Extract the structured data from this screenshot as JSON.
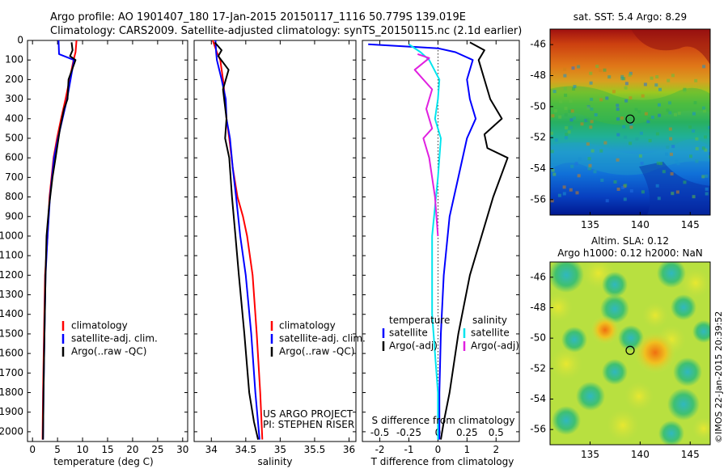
{
  "header": {
    "line1": "Argo profile: AO 1901407_180 17-Jan-2015 20150117_1116 50.779S 139.019E",
    "line2": "Climatology: CARS2009. Satellite-adjusted climatology: synTS_20150115.nc (2.1d earlier)"
  },
  "credits": {
    "project": "US ARGO PROJECT",
    "pi": "PI: STEPHEN RISER",
    "stamp": "©IMOS 22-Jan-2015 20:39:52"
  },
  "colors": {
    "climatology": "#ff0000",
    "satellite": "#0000ff",
    "argo": "#000000",
    "cyan": "#00e5ee",
    "magenta": "#e020e0"
  },
  "chart_data": [
    {
      "id": "temperature",
      "type": "line",
      "xlabel": "temperature (deg C)",
      "ylabel": "",
      "xlim": [
        -1,
        31
      ],
      "ylim": [
        2050,
        0
      ],
      "xticks": [
        0,
        5,
        10,
        15,
        20,
        25,
        30
      ],
      "yticks": [
        0,
        100,
        200,
        300,
        400,
        500,
        600,
        700,
        800,
        900,
        1000,
        1100,
        1200,
        1300,
        1400,
        1500,
        1600,
        1700,
        1800,
        1900,
        2000
      ],
      "legend": [
        "climatology",
        "satellite-adj. clim.",
        "Argo(..raw -QC)"
      ],
      "legend_position": "lower-center",
      "series": [
        {
          "name": "climatology",
          "color": "#ff0000",
          "x": [
            8.8,
            8.6,
            8.2,
            7.4,
            6.6,
            5.7,
            4.9,
            4.2,
            3.4,
            3.0,
            2.5,
            2.3,
            2.1,
            2.0
          ],
          "y": [
            0,
            60,
            100,
            200,
            300,
            400,
            500,
            600,
            800,
            1000,
            1200,
            1500,
            1800,
            2040
          ]
        },
        {
          "name": "satellite-adj. clim.",
          "color": "#0000ff",
          "x": [
            5.2,
            5.3,
            8.3,
            7.6,
            6.9,
            6.0,
            5.1,
            4.3,
            3.5,
            3.0,
            2.6,
            2.4,
            2.2,
            2.1
          ],
          "y": [
            0,
            70,
            100,
            200,
            300,
            400,
            500,
            600,
            800,
            1000,
            1200,
            1500,
            1800,
            2040
          ]
        },
        {
          "name": "Argo(..raw -QC)",
          "color": "#000000",
          "x": [
            7.8,
            8.0,
            7.5,
            8.6,
            7.2,
            7.0,
            6.3,
            5.5,
            4.6,
            4.0,
            3.3,
            2.8,
            2.6,
            2.4,
            2.2,
            2.1
          ],
          "y": [
            10,
            50,
            80,
            100,
            200,
            300,
            350,
            450,
            600,
            700,
            850,
            1000,
            1200,
            1500,
            1800,
            2040
          ]
        }
      ]
    },
    {
      "id": "salinity",
      "type": "line",
      "xlabel": "salinity",
      "ylabel": "",
      "xlim": [
        33.75,
        36.1
      ],
      "ylim": [
        2050,
        0
      ],
      "xticks": [
        34,
        34.5,
        35,
        35.5,
        36
      ],
      "legend": [
        "climatology",
        "satellite-adj. clim.",
        "Argo(..raw -QC)"
      ],
      "legend_position": "lower-right",
      "series": [
        {
          "name": "climatology",
          "color": "#ff0000",
          "x": [
            34.02,
            34.08,
            34.13,
            34.17,
            34.2,
            34.22,
            34.26,
            34.31,
            34.38,
            34.46,
            34.52,
            34.6,
            34.66,
            34.71,
            34.74
          ],
          "y": [
            0,
            60,
            100,
            200,
            300,
            400,
            500,
            650,
            800,
            900,
            1000,
            1200,
            1500,
            1800,
            2040
          ]
        },
        {
          "name": "satellite-adj. clim.",
          "color": "#0000ff",
          "x": [
            34.06,
            34.07,
            34.08,
            34.15,
            34.21,
            34.22,
            34.27,
            34.31,
            34.36,
            34.42,
            34.5,
            34.58,
            34.64,
            34.7
          ],
          "y": [
            0,
            60,
            100,
            200,
            300,
            400,
            500,
            650,
            800,
            1000,
            1200,
            1500,
            1800,
            2040
          ]
        },
        {
          "name": "Argo(..raw -QC)",
          "color": "#000000",
          "x": [
            34.05,
            34.15,
            34.1,
            34.25,
            34.17,
            34.22,
            34.2,
            34.26,
            34.3,
            34.35,
            34.4,
            34.48,
            34.55,
            34.62,
            34.68
          ],
          "y": [
            10,
            50,
            80,
            150,
            250,
            400,
            500,
            600,
            800,
            1000,
            1200,
            1500,
            1800,
            1950,
            2040
          ]
        }
      ]
    },
    {
      "id": "differences",
      "type": "line",
      "xlabel": "T difference from climatology",
      "x2label": "S difference from climatology",
      "ylabel": "",
      "xlim": [
        -2.6,
        2.8
      ],
      "ylim": [
        2050,
        0
      ],
      "xticks": [
        -2,
        -1,
        0,
        1,
        2
      ],
      "x2ticks": [
        -0.5,
        -0.25,
        0,
        0.25,
        0.5
      ],
      "legend_headers": [
        "temperature",
        "salinity"
      ],
      "legend": [
        "satellite",
        "Argo(-adj)",
        "satellite",
        "Argo(-adj)"
      ],
      "legend_position": "lower-center",
      "series": [
        {
          "name": "temperature satellite",
          "color": "#0000ff",
          "x": [
            -2.4,
            0.0,
            0.6,
            1.2,
            1.0,
            1.1,
            1.3,
            1.0,
            0.7,
            0.4,
            0.2,
            0.1,
            0.05,
            0.05
          ],
          "y": [
            20,
            40,
            60,
            100,
            200,
            300,
            400,
            500,
            700,
            900,
            1200,
            1500,
            1800,
            2040
          ]
        },
        {
          "name": "temperature Argo(-adj)",
          "color": "#000000",
          "x": [
            1.1,
            1.6,
            1.4,
            1.6,
            1.8,
            2.2,
            1.6,
            1.7,
            2.4,
            1.9,
            1.5,
            1.1,
            0.7,
            0.4,
            0.2,
            0.1
          ],
          "y": [
            10,
            50,
            100,
            200,
            300,
            400,
            480,
            550,
            600,
            800,
            1000,
            1200,
            1500,
            1800,
            1950,
            2040
          ]
        },
        {
          "name": "salinity satellite",
          "color": "#00e5ee",
          "x": [
            -1.0,
            -0.6,
            -0.3,
            0.05,
            0.0,
            -0.1,
            0.1,
            0.0,
            -0.2,
            -0.2,
            0.0,
            0.0
          ],
          "y": [
            20,
            60,
            100,
            200,
            300,
            400,
            500,
            700,
            1000,
            1400,
            1800,
            2040
          ]
        },
        {
          "name": "salinity Argo(-adj)",
          "color": "#e020e0",
          "x": [
            -0.7,
            -0.3,
            -0.8,
            -0.2,
            -0.4,
            -0.2,
            -0.5,
            -0.3,
            -0.1,
            0.0
          ],
          "y": [
            70,
            90,
            150,
            250,
            350,
            450,
            500,
            600,
            800,
            1000
          ]
        }
      ]
    },
    {
      "id": "sst-map",
      "type": "heatmap",
      "title": "sat. SST: 5.4 Argo: 8.29",
      "xlim": [
        131,
        147
      ],
      "ylim": [
        -57,
        -45
      ],
      "xticks": [
        135,
        140,
        145
      ],
      "yticks": [
        -46,
        -48,
        -50,
        -52,
        -54,
        -56
      ],
      "marker": {
        "lon": 139.0,
        "lat": -50.8
      }
    },
    {
      "id": "sla-map",
      "type": "heatmap",
      "title": "Altim. SLA: 0.12",
      "subtitle": "Argo h1000: 0.12 h2000: NaN",
      "xlim": [
        131,
        147
      ],
      "ylim": [
        -57,
        -45
      ],
      "xticks": [
        135,
        140,
        145
      ],
      "yticks": [
        -46,
        -48,
        -50,
        -52,
        -54,
        -56
      ],
      "marker": {
        "lon": 139.0,
        "lat": -50.8
      }
    }
  ]
}
